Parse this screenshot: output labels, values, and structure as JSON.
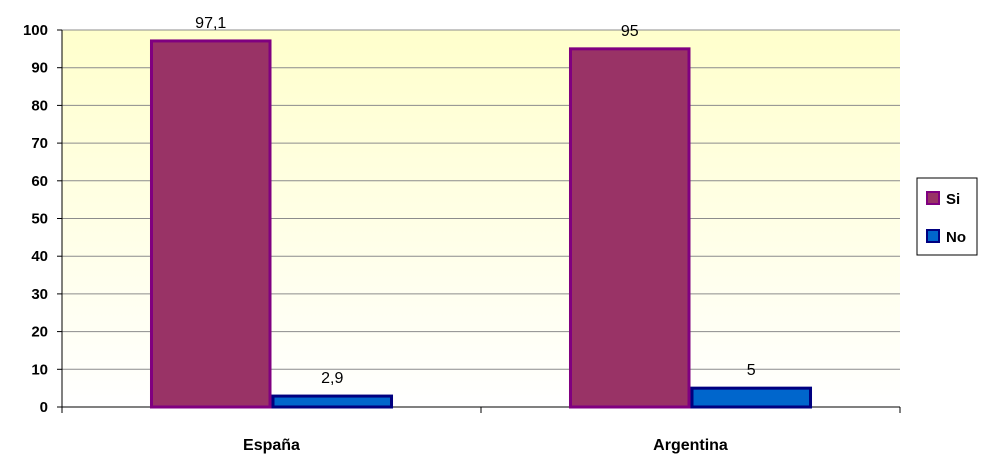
{
  "chart_data": {
    "type": "bar",
    "categories": [
      "España",
      "Argentina"
    ],
    "series": [
      {
        "name": "Si",
        "values": [
          97.1,
          95
        ],
        "value_labels": [
          "97,1",
          "95"
        ],
        "color": "#993366",
        "border": "#800080"
      },
      {
        "name": "No",
        "values": [
          2.9,
          5
        ],
        "value_labels": [
          "2,9",
          "5"
        ],
        "color": "#0066CC",
        "border": "#000080"
      }
    ],
    "ylim": [
      0,
      100
    ],
    "yticks": [
      "0",
      "10",
      "20",
      "30",
      "40",
      "50",
      "60",
      "70",
      "80",
      "90",
      "100"
    ],
    "grid": true,
    "legend": "right",
    "background": [
      "#FFFFCC",
      "#FFFFFF"
    ]
  }
}
